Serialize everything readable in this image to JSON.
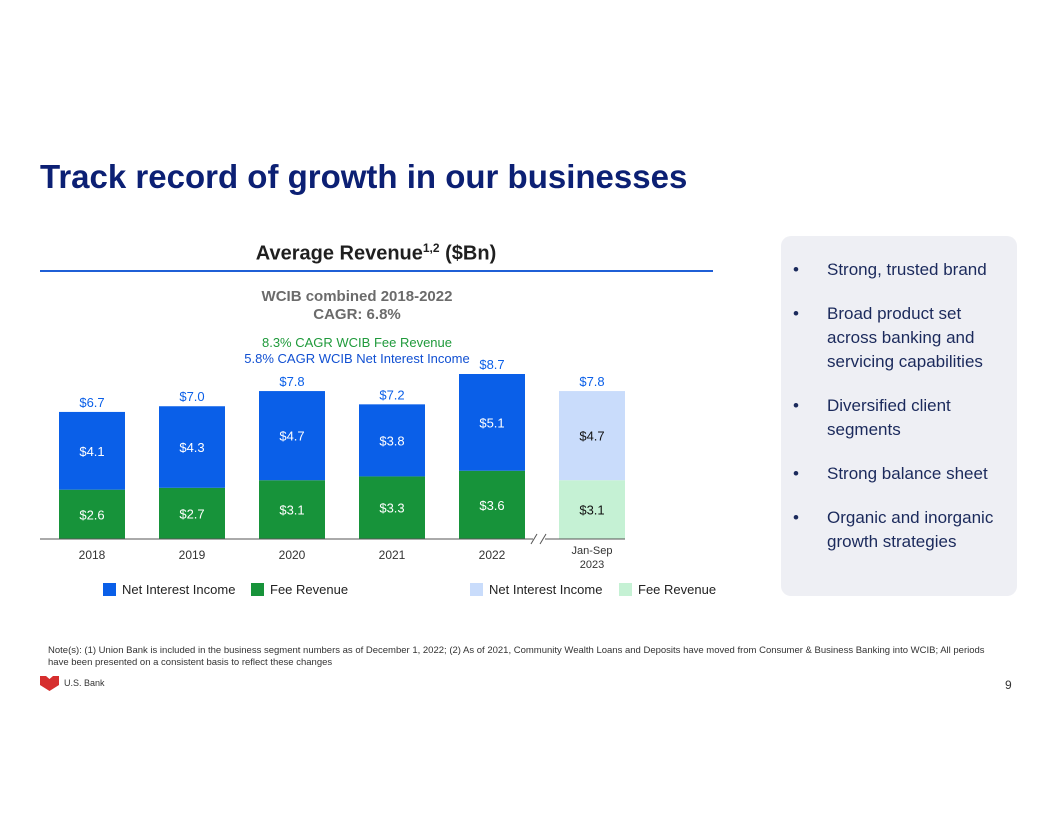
{
  "page": {
    "title": "Track record of growth in our businesses",
    "page_number": "9",
    "logo_text": "U.S. Bank",
    "note": "Note(s): (1) Union Bank is included in the business segment numbers as of December 1, 2022; (2) As of 2021, Community Wealth Loans and Deposits have moved from Consumer & Business Banking into WCIB; All periods have been presented on a consistent basis to reflect these changes"
  },
  "chart_header": {
    "title_main": "Average Revenue",
    "title_sup": "1,2",
    "title_unit": " ($Bn)",
    "cagr_line1": "WCIB combined 2018-2022",
    "cagr_line2": "CAGR: 6.8%",
    "fee_cagr": "8.3% CAGR WCIB Fee Revenue",
    "nii_cagr": "5.8% CAGR WCIB Net Interest Income"
  },
  "chart_data": {
    "type": "bar",
    "stacked": true,
    "categories": [
      "2018",
      "2019",
      "2020",
      "2021",
      "2022",
      "Jan-Sep 2023"
    ],
    "series": [
      {
        "name": "Fee Revenue",
        "values": [
          2.6,
          2.7,
          3.1,
          3.3,
          3.6,
          3.1
        ],
        "labels": [
          "$2.6",
          "$2.7",
          "$3.1",
          "$3.3",
          "$3.6",
          "$3.1"
        ]
      },
      {
        "name": "Net Interest Income",
        "values": [
          4.1,
          4.3,
          4.7,
          3.8,
          5.1,
          4.7
        ],
        "labels": [
          "$4.1",
          "$4.3",
          "$4.7",
          "$3.8",
          "$5.1",
          "$4.7"
        ]
      }
    ],
    "totals": [
      6.7,
      7.0,
      7.8,
      7.2,
      8.7,
      7.8
    ],
    "total_labels": [
      "$6.7",
      "$7.0",
      "$7.8",
      "$7.2",
      "$8.7",
      "$7.8"
    ],
    "ylim": [
      0,
      8.7
    ],
    "ylabel": "",
    "xlabel": "",
    "axis_break_before_last": true,
    "legend": {
      "full_year": [
        "Net Interest Income",
        "Fee Revenue"
      ],
      "partial_year": [
        "Net Interest Income",
        "Fee Revenue"
      ]
    }
  },
  "bullets": [
    "Strong, trusted brand",
    "Broad product set across banking and servicing capabilities",
    "Diversified client segments",
    "Strong balance sheet",
    "Organic and inorganic growth strategies"
  ],
  "colors": {
    "title": "#0c2074",
    "nii_full": "#0a5fe8",
    "fee_full": "#17933a",
    "nii_partial": "#c9dcfb",
    "fee_partial": "#c5f1d4",
    "cagr_fee_text": "#1f9a3b",
    "cagr_nii_text": "#1150d2"
  }
}
